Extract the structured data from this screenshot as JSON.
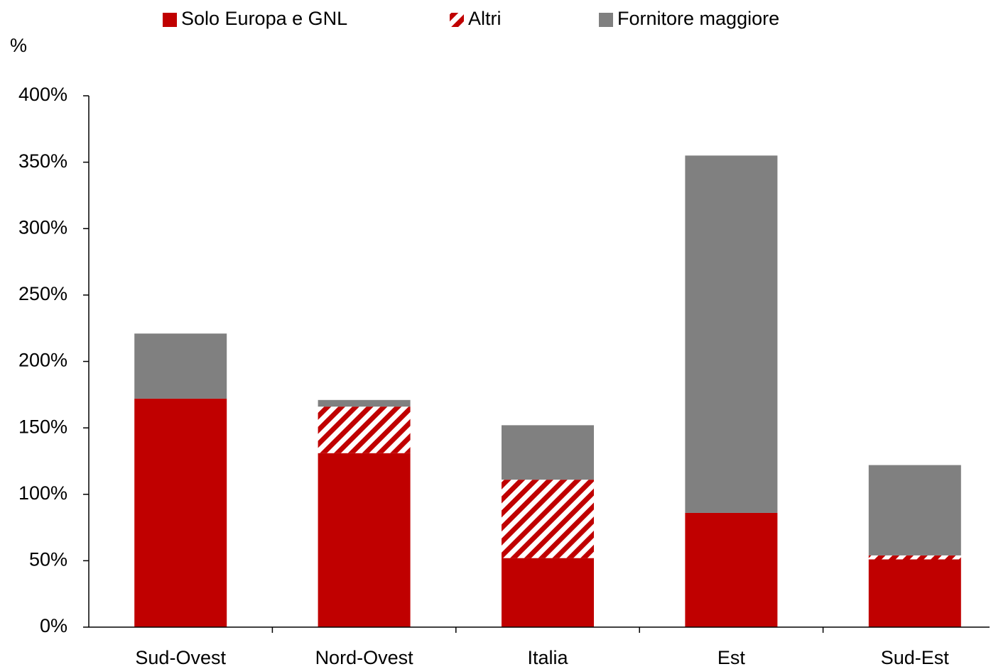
{
  "chart_data": {
    "type": "stacked_bar",
    "y_label": "%",
    "categories": [
      "Sud-Ovest",
      "Nord-Ovest",
      "Italia",
      "Est",
      "Sud-Est"
    ],
    "series": [
      {
        "name": "Solo Europa e GNL",
        "color": "#c00000",
        "values": [
          172,
          131,
          52,
          86,
          51
        ]
      },
      {
        "name": "Altri",
        "color": "#c00000",
        "pattern": "hatch",
        "values": [
          0,
          35,
          59,
          0,
          3
        ]
      },
      {
        "name": "Fornitore maggiore",
        "color": "#808080",
        "values": [
          49,
          5,
          41,
          269,
          68
        ]
      }
    ],
    "ylim": [
      0,
      400
    ],
    "yticks": [
      {
        "value": 0,
        "label": "0%"
      },
      {
        "value": 50,
        "label": "50%"
      },
      {
        "value": 100,
        "label": "100%"
      },
      {
        "value": 150,
        "label": "150%"
      },
      {
        "value": 200,
        "label": "200%"
      },
      {
        "value": 250,
        "label": "250%"
      },
      {
        "value": 300,
        "label": "300%"
      },
      {
        "value": 350,
        "label": "350%"
      },
      {
        "value": 400,
        "label": "400%"
      }
    ],
    "legend": "top"
  }
}
